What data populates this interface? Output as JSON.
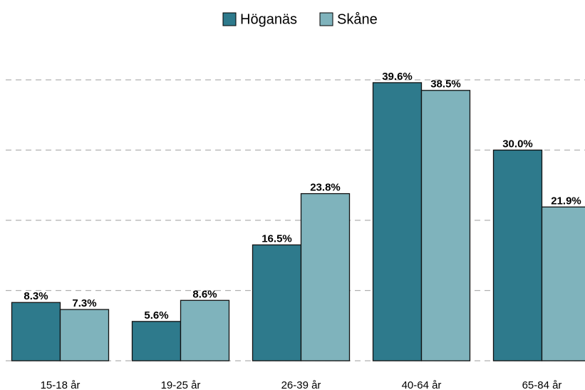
{
  "chart_data": {
    "type": "bar",
    "categories": [
      "15-18 år",
      "19-25 år",
      "26-39 år",
      "40-64 år",
      "65-84 år"
    ],
    "series": [
      {
        "name": "Höganäs",
        "color": "#2e7a8c",
        "values": [
          8.3,
          5.6,
          16.5,
          39.6,
          30.0
        ],
        "value_labels": [
          "8.3%",
          "5.6%",
          "16.5%",
          "39.6%",
          "30.0%"
        ]
      },
      {
        "name": "Skåne",
        "color": "#7fb3bc",
        "values": [
          7.3,
          8.6,
          23.8,
          38.5,
          21.9
        ],
        "value_labels": [
          "7.3%",
          "8.6%",
          "23.8%",
          "38.5%",
          "21.9%"
        ]
      }
    ],
    "ylim": [
      0,
      44
    ],
    "yticks": [
      0,
      10,
      20,
      30,
      40
    ],
    "grid": true,
    "legend": "top"
  }
}
